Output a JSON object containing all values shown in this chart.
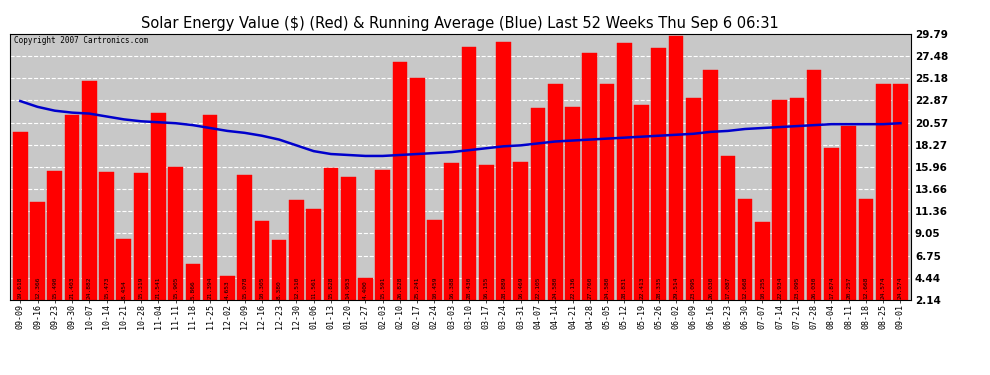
{
  "title": "Solar Energy Value ($) (Red) & Running Average (Blue) Last 52 Weeks Thu Sep 6 06:31",
  "copyright": "Copyright 2007 Cartronics.com",
  "bar_color": "#ff0000",
  "line_color": "#0000cc",
  "bg_color": "#ffffff",
  "plot_bg_color": "#c8c8c8",
  "grid_color": "#ffffff",
  "ylim": [
    2.14,
    29.79
  ],
  "yticks": [
    2.14,
    4.44,
    6.75,
    9.05,
    11.36,
    13.66,
    15.96,
    18.27,
    20.57,
    22.87,
    25.18,
    27.48,
    29.79
  ],
  "categories": [
    "09-09",
    "09-16",
    "09-23",
    "09-30",
    "10-07",
    "10-14",
    "10-21",
    "10-28",
    "11-04",
    "11-11",
    "11-18",
    "11-25",
    "12-02",
    "12-09",
    "12-16",
    "12-23",
    "12-30",
    "01-06",
    "01-13",
    "01-20",
    "01-27",
    "02-03",
    "02-10",
    "02-17",
    "02-24",
    "03-03",
    "03-10",
    "03-17",
    "03-24",
    "03-31",
    "04-07",
    "04-14",
    "04-21",
    "04-28",
    "05-05",
    "05-12",
    "05-19",
    "05-26",
    "06-02",
    "06-09",
    "06-16",
    "06-23",
    "06-30",
    "07-07",
    "07-14",
    "07-21",
    "07-28",
    "08-04",
    "08-11",
    "08-18",
    "08-25",
    "09-01"
  ],
  "values": [
    19.618,
    12.366,
    15.49,
    21.403,
    24.882,
    15.473,
    8.454,
    15.319,
    21.541,
    15.905,
    5.866,
    21.394,
    4.653,
    15.078,
    10.305,
    8.38,
    12.51,
    11.561,
    15.828,
    14.953,
    4.4,
    15.591,
    26.828,
    25.241,
    10.459,
    16.388,
    28.43,
    16.155,
    28.889,
    16.469,
    22.105,
    24.58,
    22.136,
    27.76,
    24.58,
    28.831,
    22.413,
    28.335,
    29.514,
    23.095,
    26.03,
    17.087,
    12.668,
    10.255,
    22.934,
    23.095,
    26.03,
    17.874,
    20.257,
    12.668,
    24.574,
    24.574
  ],
  "running_avg": [
    22.8,
    22.2,
    21.8,
    21.6,
    21.5,
    21.2,
    20.9,
    20.7,
    20.6,
    20.5,
    20.3,
    20.0,
    19.7,
    19.5,
    19.2,
    18.8,
    18.2,
    17.6,
    17.3,
    17.2,
    17.1,
    17.1,
    17.2,
    17.3,
    17.4,
    17.5,
    17.7,
    17.9,
    18.1,
    18.2,
    18.4,
    18.6,
    18.7,
    18.8,
    18.9,
    19.0,
    19.1,
    19.2,
    19.3,
    19.4,
    19.6,
    19.7,
    19.9,
    20.0,
    20.1,
    20.2,
    20.3,
    20.4,
    20.4,
    20.4,
    20.4,
    20.5
  ],
  "label_fontsize": 4.5,
  "xtick_fontsize": 6.0,
  "ytick_fontsize": 7.5,
  "title_fontsize": 10.5
}
